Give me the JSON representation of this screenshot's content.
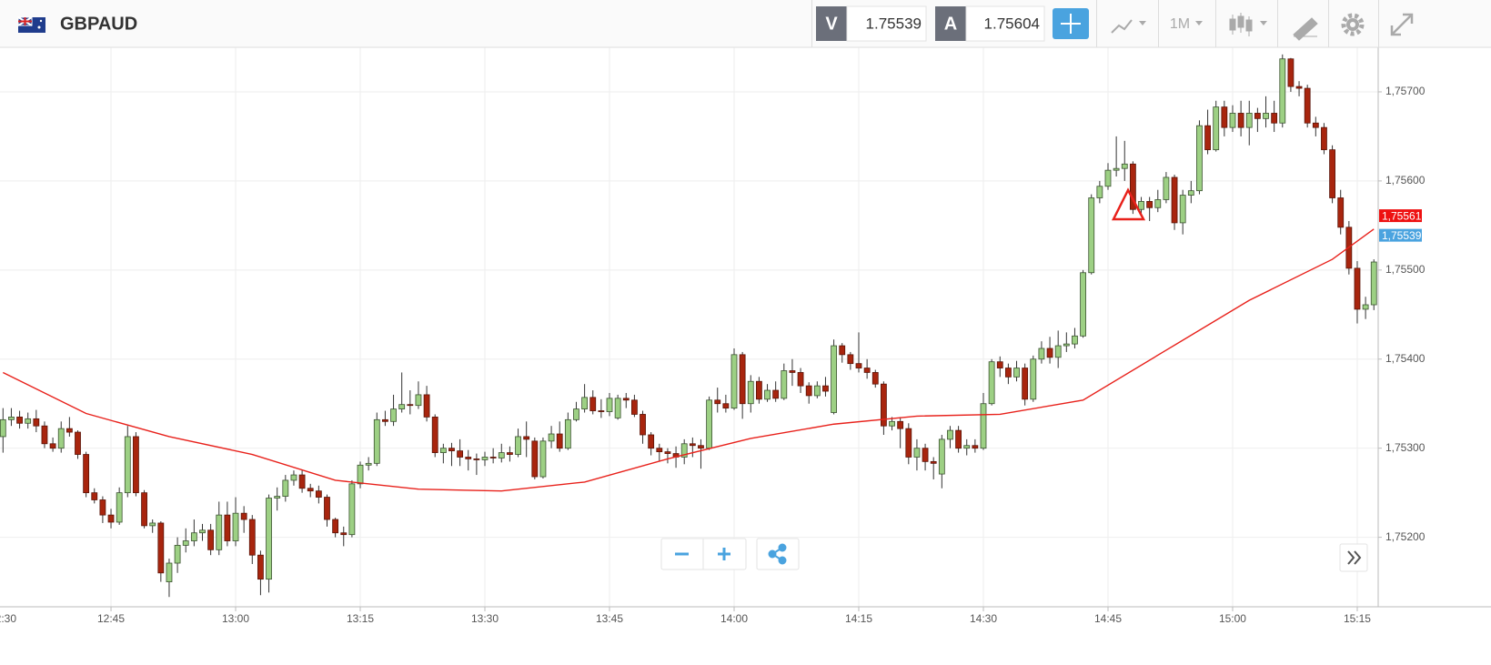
{
  "header": {
    "symbol": "GBPAUD",
    "bid_letter": "V",
    "bid": "1.75539",
    "ask_letter": "A",
    "ask": "1.75604",
    "timeframe": "1M"
  },
  "chart_data": {
    "type": "candlestick",
    "x": [
      "12:32",
      "12:33",
      "12:34",
      "12:35",
      "12:36",
      "12:37",
      "12:38",
      "12:39",
      "12:40",
      "12:41",
      "12:42",
      "12:43",
      "12:44",
      "12:45",
      "12:46",
      "12:47",
      "12:48",
      "12:49",
      "12:50",
      "12:51",
      "12:52",
      "12:53",
      "12:54",
      "12:55",
      "12:56",
      "12:57",
      "12:58",
      "12:59",
      "13:00",
      "13:01",
      "13:02",
      "13:03",
      "13:04",
      "13:05",
      "13:06",
      "13:07",
      "13:08",
      "13:09",
      "13:10",
      "13:11",
      "13:12",
      "13:13",
      "13:14",
      "13:15",
      "13:16",
      "13:17",
      "13:18",
      "13:19",
      "13:20",
      "13:21",
      "13:22",
      "13:23",
      "13:24",
      "13:25",
      "13:26",
      "13:27",
      "13:28",
      "13:29",
      "13:30",
      "13:31",
      "13:32",
      "13:33",
      "13:34",
      "13:35",
      "13:36",
      "13:37",
      "13:38",
      "13:39",
      "13:40",
      "13:41",
      "13:42",
      "13:43",
      "13:44",
      "13:45",
      "13:46",
      "13:47",
      "13:48",
      "13:49",
      "13:50",
      "13:51",
      "13:52",
      "13:53",
      "13:54",
      "13:55",
      "13:56",
      "13:57",
      "13:58",
      "13:59",
      "14:00",
      "14:01",
      "14:02",
      "14:03",
      "14:04",
      "14:05",
      "14:06",
      "14:07",
      "14:08",
      "14:09",
      "14:10",
      "14:11",
      "14:12",
      "14:13",
      "14:14",
      "14:15",
      "14:16",
      "14:17",
      "14:18",
      "14:19",
      "14:20",
      "14:21",
      "14:22",
      "14:23",
      "14:24",
      "14:25",
      "14:26",
      "14:27",
      "14:28",
      "14:29",
      "14:30",
      "14:31",
      "14:32",
      "14:33",
      "14:34",
      "14:35",
      "14:36",
      "14:37",
      "14:38",
      "14:39",
      "14:40",
      "14:41",
      "14:42",
      "14:43",
      "14:44",
      "14:45",
      "14:46",
      "14:47",
      "14:48",
      "14:49",
      "14:50",
      "14:51",
      "14:52",
      "14:53",
      "14:54",
      "14:55",
      "14:56",
      "14:57",
      "14:58",
      "14:59",
      "15:00",
      "15:01",
      "15:02",
      "15:03",
      "15:04",
      "15:05",
      "15:06",
      "15:07",
      "15:08",
      "15:09",
      "15:10",
      "15:11",
      "15:12",
      "15:13",
      "15:14",
      "15:15",
      "15:16",
      "15:17"
    ],
    "open": [
      1.75313,
      1.75332,
      1.75335,
      1.75328,
      1.75333,
      1.75325,
      1.75305,
      1.753,
      1.75322,
      1.75318,
      1.75293,
      1.7525,
      1.75242,
      1.75225,
      1.75217,
      1.7525,
      1.75313,
      1.7525,
      1.75213,
      1.75216,
      1.7515,
      1.75171,
      1.75191,
      1.75196,
      1.75205,
      1.75208,
      1.75186,
      1.75225,
      1.75196,
      1.75227,
      1.7522,
      1.7518,
      1.75153,
      1.75244,
      1.75246,
      1.75264,
      1.7527,
      1.75255,
      1.75252,
      1.75245,
      1.7522,
      1.75205,
      1.75203,
      1.7526,
      1.75281,
      1.75283,
      1.75332,
      1.7533,
      1.75344,
      1.75349,
      1.75348,
      1.7536,
      1.75335,
      1.75295,
      1.753,
      1.75297,
      1.7529,
      1.75288,
      1.75287,
      1.7529,
      1.75289,
      1.75295,
      1.75293,
      1.75313,
      1.75308,
      1.75268,
      1.75308,
      1.75316,
      1.753,
      1.75332,
      1.75344,
      1.75357,
      1.75342,
      1.75341,
      1.75334,
      1.75356,
      1.75354,
      1.75338,
      1.75315,
      1.753,
      1.75296,
      1.75294,
      1.7529,
      1.75305,
      1.75303,
      1.753,
      1.75354,
      1.7535,
      1.75345,
      1.75405,
      1.7535,
      1.75375,
      1.75355,
      1.75365,
      1.75356,
      1.75387,
      1.75385,
      1.7537,
      1.75359,
      1.7537,
      1.7534,
      1.75415,
      1.75405,
      1.75395,
      1.7539,
      1.75385,
      1.75372,
      1.75325,
      1.7533,
      1.75322,
      1.7529,
      1.753,
      1.75285,
      1.75271,
      1.7531,
      1.7532,
      1.753,
      1.75303,
      1.753,
      1.7535,
      1.75397,
      1.7539,
      1.7538,
      1.7539,
      1.75355,
      1.754,
      1.75412,
      1.75402,
      1.75415,
      1.75417,
      1.75426,
      1.75497,
      1.75581,
      1.75594,
      1.75612,
      1.75614,
      1.75619,
      1.75568,
      1.75577,
      1.7557,
      1.75579,
      1.75604,
      1.75553,
      1.75584,
      1.75589,
      1.75662,
      1.75635,
      1.75683,
      1.7566,
      1.75676,
      1.7566,
      1.75676,
      1.7567,
      1.75676,
      1.75665,
      1.75737,
      1.75706,
      1.75704,
      1.75665,
      1.7566,
      1.75635,
      1.75581,
      1.75548,
      1.75502,
      1.75456,
      1.75461
    ],
    "high": [
      1.75345,
      1.75345,
      1.75342,
      1.7534,
      1.75343,
      1.7533,
      1.75312,
      1.7533,
      1.75335,
      1.7532,
      1.75296,
      1.75255,
      1.75246,
      1.75232,
      1.75256,
      1.75325,
      1.75318,
      1.75253,
      1.7522,
      1.75218,
      1.75176,
      1.752,
      1.7521,
      1.7522,
      1.75215,
      1.75215,
      1.7524,
      1.7524,
      1.75245,
      1.75235,
      1.75225,
      1.75185,
      1.75248,
      1.75256,
      1.7527,
      1.75275,
      1.75276,
      1.7526,
      1.75258,
      1.75248,
      1.75222,
      1.75212,
      1.75264,
      1.75285,
      1.7529,
      1.7534,
      1.75342,
      1.7536,
      1.75385,
      1.75365,
      1.75375,
      1.7537,
      1.75338,
      1.75305,
      1.75306,
      1.7531,
      1.75298,
      1.75294,
      1.75296,
      1.753,
      1.75305,
      1.75302,
      1.75322,
      1.7533,
      1.75312,
      1.75312,
      1.75325,
      1.7533,
      1.7534,
      1.75352,
      1.75372,
      1.75365,
      1.75355,
      1.75362,
      1.7536,
      1.75362,
      1.7536,
      1.75342,
      1.75318,
      1.75305,
      1.753,
      1.75302,
      1.7531,
      1.75312,
      1.7531,
      1.75358,
      1.75368,
      1.7536,
      1.75412,
      1.75408,
      1.75382,
      1.7538,
      1.75372,
      1.75375,
      1.75395,
      1.754,
      1.7539,
      1.75374,
      1.75375,
      1.7538,
      1.75422,
      1.75418,
      1.75408,
      1.7543,
      1.754,
      1.75388,
      1.75375,
      1.75335,
      1.75335,
      1.75328,
      1.7531,
      1.75305,
      1.7529,
      1.75315,
      1.75325,
      1.75325,
      1.7531,
      1.7531,
      1.75362,
      1.754,
      1.75403,
      1.75395,
      1.75398,
      1.75395,
      1.75404,
      1.7542,
      1.75425,
      1.75432,
      1.7543,
      1.75435,
      1.755,
      1.75585,
      1.756,
      1.7562,
      1.7565,
      1.75645,
      1.75622,
      1.75582,
      1.75582,
      1.7559,
      1.7561,
      1.75607,
      1.7559,
      1.756,
      1.75668,
      1.7568,
      1.7569,
      1.7569,
      1.75685,
      1.7569,
      1.7569,
      1.75682,
      1.75695,
      1.7569,
      1.75742,
      1.75738,
      1.75712,
      1.75708,
      1.75672,
      1.75665,
      1.7564,
      1.7559,
      1.75555,
      1.7551,
      1.7547,
      1.75512
    ],
    "low": [
      1.75295,
      1.75325,
      1.75322,
      1.75322,
      1.75318,
      1.753,
      1.75296,
      1.75295,
      1.75313,
      1.75288,
      1.75245,
      1.75238,
      1.75216,
      1.7521,
      1.75214,
      1.75245,
      1.75246,
      1.7521,
      1.75205,
      1.7515,
      1.75133,
      1.7516,
      1.75183,
      1.7519,
      1.75196,
      1.7518,
      1.7518,
      1.7519,
      1.7519,
      1.75205,
      1.7517,
      1.75135,
      1.75138,
      1.7523,
      1.7524,
      1.75258,
      1.7525,
      1.75245,
      1.75238,
      1.75212,
      1.752,
      1.7519,
      1.752,
      1.75255,
      1.75275,
      1.7528,
      1.75325,
      1.75325,
      1.7534,
      1.75338,
      1.75344,
      1.7533,
      1.7529,
      1.75283,
      1.7528,
      1.7528,
      1.75275,
      1.7527,
      1.7528,
      1.75283,
      1.75284,
      1.75285,
      1.7529,
      1.7529,
      1.75265,
      1.75266,
      1.753,
      1.75296,
      1.75298,
      1.7533,
      1.7534,
      1.75338,
      1.75334,
      1.75336,
      1.75332,
      1.75345,
      1.75335,
      1.75305,
      1.75292,
      1.75285,
      1.75283,
      1.75278,
      1.75282,
      1.7529,
      1.75277,
      1.75298,
      1.7534,
      1.7534,
      1.75343,
      1.75333,
      1.7534,
      1.7535,
      1.75352,
      1.75352,
      1.75354,
      1.7537,
      1.75362,
      1.7535,
      1.75356,
      1.75358,
      1.75338,
      1.75396,
      1.75388,
      1.75385,
      1.75378,
      1.75368,
      1.75315,
      1.7532,
      1.753,
      1.75282,
      1.75275,
      1.75275,
      1.75265,
      1.75255,
      1.753,
      1.75295,
      1.75292,
      1.75295,
      1.75298,
      1.75348,
      1.7538,
      1.75372,
      1.75375,
      1.75348,
      1.75352,
      1.75395,
      1.75395,
      1.7539,
      1.75408,
      1.75412,
      1.75424,
      1.75495,
      1.75575,
      1.7559,
      1.75605,
      1.756,
      1.75563,
      1.75562,
      1.75555,
      1.75565,
      1.75575,
      1.75545,
      1.7554,
      1.75575,
      1.75585,
      1.7563,
      1.75633,
      1.7565,
      1.75655,
      1.7565,
      1.7564,
      1.75655,
      1.7566,
      1.75655,
      1.7566,
      1.757,
      1.75695,
      1.7566,
      1.7565,
      1.7563,
      1.75575,
      1.7554,
      1.75495,
      1.7544,
      1.75445,
      1.75455
    ],
    "close": [
      1.75332,
      1.75335,
      1.75328,
      1.75333,
      1.75325,
      1.75305,
      1.753,
      1.75322,
      1.75318,
      1.75293,
      1.7525,
      1.75242,
      1.75225,
      1.75217,
      1.7525,
      1.75313,
      1.7525,
      1.75213,
      1.75216,
      1.7516,
      1.75171,
      1.75191,
      1.75196,
      1.75205,
      1.75208,
      1.75186,
      1.75225,
      1.75196,
      1.75227,
      1.7522,
      1.7518,
      1.75153,
      1.75244,
      1.75246,
      1.75264,
      1.7527,
      1.75255,
      1.75252,
      1.75245,
      1.7522,
      1.75205,
      1.75203,
      1.7526,
      1.75281,
      1.75283,
      1.75332,
      1.7533,
      1.75344,
      1.75349,
      1.75348,
      1.7536,
      1.75335,
      1.75295,
      1.753,
      1.75297,
      1.7529,
      1.75288,
      1.75287,
      1.7529,
      1.75289,
      1.75295,
      1.75293,
      1.75313,
      1.7531,
      1.75268,
      1.75308,
      1.75316,
      1.753,
      1.75332,
      1.75344,
      1.75357,
      1.75342,
      1.75341,
      1.75356,
      1.75356,
      1.75354,
      1.75338,
      1.75315,
      1.753,
      1.75296,
      1.75294,
      1.7529,
      1.75305,
      1.75303,
      1.753,
      1.75354,
      1.7535,
      1.75345,
      1.75405,
      1.7535,
      1.75375,
      1.75355,
      1.75365,
      1.75356,
      1.75387,
      1.75385,
      1.7537,
      1.75359,
      1.7537,
      1.75364,
      1.75415,
      1.75405,
      1.75395,
      1.7539,
      1.75385,
      1.75372,
      1.75325,
      1.7533,
      1.75322,
      1.7529,
      1.753,
      1.75285,
      1.75283,
      1.7531,
      1.7532,
      1.753,
      1.75303,
      1.753,
      1.7535,
      1.75397,
      1.7539,
      1.7538,
      1.7539,
      1.75355,
      1.754,
      1.75412,
      1.75402,
      1.75415,
      1.75417,
      1.75426,
      1.75497,
      1.75581,
      1.75594,
      1.75612,
      1.75614,
      1.75619,
      1.75568,
      1.75577,
      1.7557,
      1.75579,
      1.75604,
      1.75553,
      1.75584,
      1.75589,
      1.75662,
      1.75635,
      1.75683,
      1.7566,
      1.75676,
      1.7566,
      1.75676,
      1.7567,
      1.75676,
      1.75665,
      1.75737,
      1.75706,
      1.75704,
      1.75665,
      1.7566,
      1.75635,
      1.75581,
      1.75548,
      1.75502,
      1.75456,
      1.75461,
      1.75509
    ],
    "up_color": "#9dd084",
    "down_color": "#a8250e",
    "moving_average": {
      "color": "#e8211b",
      "x": [
        "12:32",
        "12:42",
        "12:52",
        "13:02",
        "13:12",
        "13:22",
        "13:32",
        "13:42",
        "13:52",
        "14:02",
        "14:12",
        "14:22",
        "14:32",
        "14:42",
        "14:52",
        "15:02",
        "15:12",
        "15:17"
      ],
      "values": [
        1.75385,
        1.75339,
        1.75313,
        1.75293,
        1.75264,
        1.75254,
        1.75252,
        1.75262,
        1.75288,
        1.75311,
        1.75327,
        1.75336,
        1.75338,
        1.75354,
        1.7541,
        1.75466,
        1.75512,
        1.75546
      ]
    },
    "ylim": [
      1.75122,
      1.7575
    ],
    "yticks": [
      {
        "value": 1.752,
        "label": "1,75200"
      },
      {
        "value": 1.753,
        "label": "1,75300"
      },
      {
        "value": 1.754,
        "label": "1,75400"
      },
      {
        "value": 1.755,
        "label": "1,75500"
      },
      {
        "value": 1.756,
        "label": "1,75600"
      },
      {
        "value": 1.757,
        "label": "1,75700"
      }
    ],
    "xticks": [
      "12:30",
      "12:45",
      "13:00",
      "13:15",
      "13:30",
      "13:45",
      "14:00",
      "14:15",
      "14:30",
      "14:45",
      "15:00",
      "15:15"
    ],
    "grid": true,
    "price_markers": [
      {
        "value": 1.75561,
        "label": "1,75561",
        "color": "#ee1111"
      },
      {
        "value": 1.75539,
        "label": "1,75539",
        "color": "#4aa3df"
      }
    ]
  }
}
